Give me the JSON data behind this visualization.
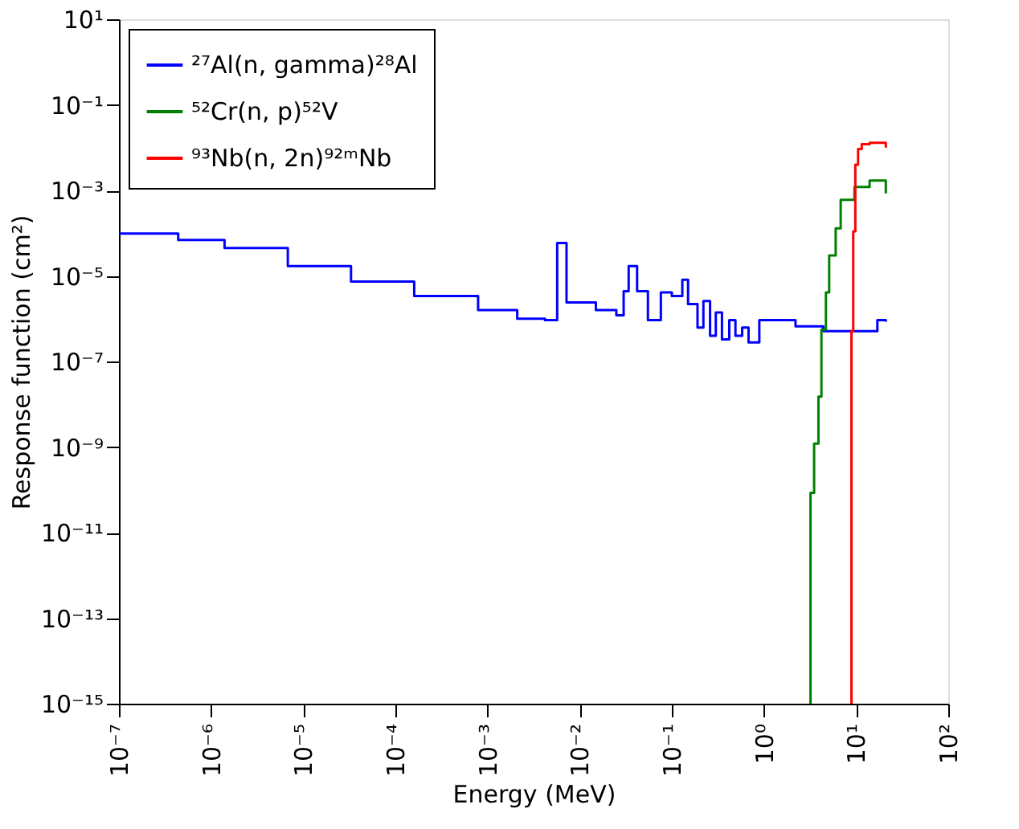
{
  "chart_data": {
    "type": "step",
    "xlabel": "Energy (MeV)",
    "ylabel": "Response function (cm²)",
    "log": "xy",
    "grid": false,
    "legend": "top left",
    "line_style": "solid",
    "marker": "none",
    "xlim": [
      1e-07,
      100
    ],
    "ylim": [
      1e-15,
      10
    ],
    "xticks": [
      {
        "value": 1e-07,
        "label": "10⁻⁷"
      },
      {
        "value": 1e-06,
        "label": "10⁻⁶"
      },
      {
        "value": 1e-05,
        "label": "10⁻⁵"
      },
      {
        "value": 0.0001,
        "label": "10⁻⁴"
      },
      {
        "value": 0.001,
        "label": "10⁻³"
      },
      {
        "value": 0.01,
        "label": "10⁻²"
      },
      {
        "value": 0.1,
        "label": "10⁻¹"
      },
      {
        "value": 1,
        "label": "10⁰"
      },
      {
        "value": 10,
        "label": "10¹"
      },
      {
        "value": 100,
        "label": "10²"
      }
    ],
    "yticks": [
      {
        "value": 1e-15,
        "label": "10⁻¹⁵"
      },
      {
        "value": 1e-13,
        "label": "10⁻¹³"
      },
      {
        "value": 1e-11,
        "label": "10⁻¹¹"
      },
      {
        "value": 1e-09,
        "label": "10⁻⁹"
      },
      {
        "value": 1e-07,
        "label": "10⁻⁷"
      },
      {
        "value": 1e-05,
        "label": "10⁻⁵"
      },
      {
        "value": 0.001,
        "label": "10⁻³"
      },
      {
        "value": 0.1,
        "label": "10⁻¹"
      },
      {
        "value": 10,
        "label": "10¹"
      }
    ],
    "series": [
      {
        "name": "²⁷Al(n, gamma)²⁸Al",
        "color": "#0000ff",
        "x": [
          1e-07,
          4.4e-07,
          1.4e-06,
          6.8e-06,
          3.3e-05,
          0.00016,
          0.00079,
          0.0021,
          0.0042,
          0.0057,
          0.0072,
          0.015,
          0.025,
          0.03,
          0.034,
          0.042,
          0.055,
          0.076,
          0.1,
          0.13,
          0.15,
          0.19,
          0.22,
          0.26,
          0.3,
          0.35,
          0.42,
          0.49,
          0.58,
          0.68,
          0.89,
          2.2,
          4.4,
          9.6,
          17,
          21
        ],
        "values": [
          9.8e-05,
          6.9e-05,
          4.5e-05,
          1.7e-05,
          7.4e-06,
          3.4e-06,
          1.6e-06,
          1e-06,
          9.3e-07,
          5.9e-05,
          2.4e-06,
          1.6e-06,
          1.2e-06,
          4.4e-06,
          1.7e-05,
          4.4e-06,
          9.3e-07,
          4.1e-06,
          3.4e-06,
          8.1e-06,
          2.2e-06,
          6.2e-07,
          2.6e-06,
          4e-07,
          1.4e-06,
          3.3e-07,
          9.3e-07,
          4e-07,
          6.2e-07,
          2.8e-07,
          9.3e-07,
          6.6e-07,
          5.1e-07,
          5.1e-07,
          9.3e-07,
          8.5e-07
        ]
      },
      {
        "name": "⁵²Cr(n, p)⁵²V",
        "color": "#008000",
        "x": [
          3.2,
          3.2,
          3.5,
          3.9,
          4.2,
          4.7,
          5.1,
          6.0,
          6.8,
          9.6,
          14,
          21
        ],
        "values": [
          1e-15,
          8.5e-11,
          1.2e-09,
          1.5e-08,
          5.6e-07,
          4.1e-06,
          3e-05,
          0.00013,
          0.0006,
          0.0012,
          0.0017,
          0.00085
        ]
      },
      {
        "name": "⁹³Nb(n, 2n)⁹²ᵐNb",
        "color": "#ff0000",
        "x": [
          8.9,
          8.9,
          9.3,
          9.8,
          10.5,
          11.5,
          14,
          21
        ],
        "values": [
          1e-15,
          5.1e-07,
          0.00011,
          0.004,
          0.0093,
          0.012,
          0.013,
          0.01
        ]
      }
    ]
  }
}
